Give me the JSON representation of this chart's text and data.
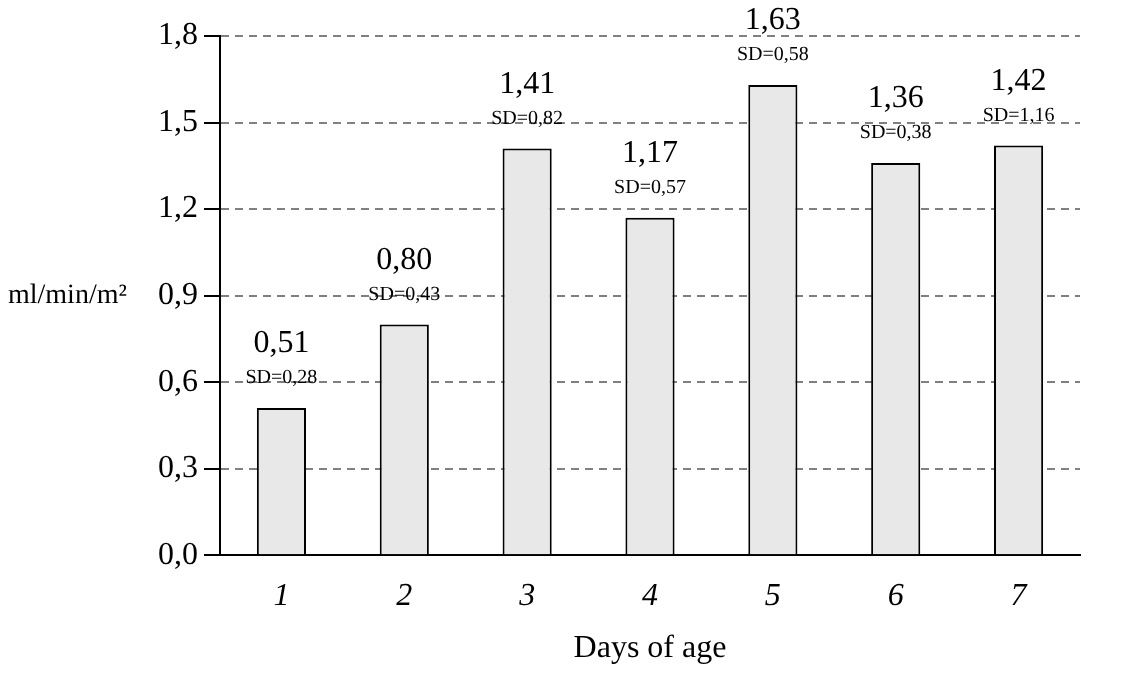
{
  "chart_data": {
    "type": "bar",
    "xlabel": "Days of age",
    "ylabel": "ml/min/m²",
    "categories": [
      "1",
      "2",
      "3",
      "4",
      "5",
      "6",
      "7"
    ],
    "values": [
      0.51,
      0.8,
      1.41,
      1.17,
      1.63,
      1.36,
      1.42
    ],
    "value_labels": [
      "0,51",
      "0,80",
      "1,41",
      "1,17",
      "1,63",
      "1,36",
      "1,42"
    ],
    "color": "#e8e8e8",
    "ylim": [
      0,
      1.8
    ],
    "yticks": [
      {
        "value": 0,
        "label": "0,0"
      },
      {
        "value": 0.3,
        "label": "0,3"
      },
      {
        "value": 0.6,
        "label": "0,6"
      },
      {
        "value": 0.9,
        "label": "0,9"
      },
      {
        "value": 1.2,
        "label": "1,2"
      },
      {
        "value": 1.5,
        "label": "1,5"
      },
      {
        "value": 1.8,
        "label": "1,8"
      }
    ],
    "grid": "y",
    "annotations": [
      {
        "text": "SD=0,28",
        "x": "1",
        "y": 0.51
      },
      {
        "text": "SD=0,43",
        "x": "2",
        "y": 0.8
      },
      {
        "text": "SD=0,82",
        "x": "3",
        "y": 1.41
      },
      {
        "text": "SD=0,57",
        "x": "4",
        "y": 1.17
      },
      {
        "text": "SD=0,58",
        "x": "5",
        "y": 1.63
      },
      {
        "text": "SD=0,38",
        "x": "6",
        "y": 1.36
      },
      {
        "text": "SD=1,16",
        "x": "7",
        "y": 1.42
      }
    ]
  }
}
